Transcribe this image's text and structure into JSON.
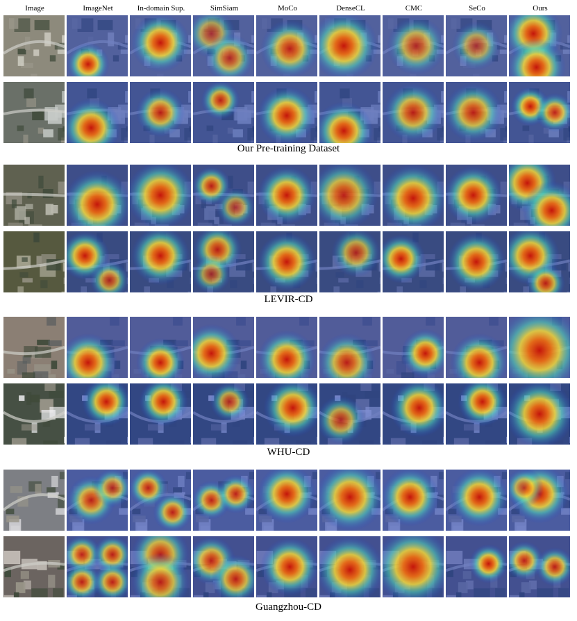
{
  "columns": [
    "Image",
    "ImageNet",
    "In-domain Sup.",
    "SimSiam",
    "MoCo",
    "DenseCL",
    "CMC",
    "SeCo",
    "Ours"
  ],
  "sections": [
    {
      "caption": "Our Pre-training Dataset",
      "rows": [
        {
          "scene": "suburban",
          "base": "#8d8a7c",
          "accent": "#d8d6cc",
          "heat": [
            [
              [
                0.35,
                0.8,
                0.22,
                1
              ]
            ],
            [
              [
                0.5,
                0.45,
                0.3,
                1
              ]
            ],
            [
              [
                0.3,
                0.3,
                0.25,
                0.7
              ],
              [
                0.6,
                0.7,
                0.25,
                0.8
              ]
            ],
            [
              [
                0.55,
                0.55,
                0.3,
                0.9
              ]
            ],
            [
              [
                0.4,
                0.5,
                0.35,
                1
              ]
            ],
            [
              [
                0.55,
                0.5,
                0.3,
                0.8
              ]
            ],
            [
              [
                0.5,
                0.5,
                0.25,
                0.7
              ]
            ],
            [
              [
                0.4,
                0.3,
                0.3,
                1
              ],
              [
                0.45,
                0.85,
                0.3,
                1
              ]
            ]
          ]
        },
        {
          "scene": "roads",
          "base": "#6a7068",
          "accent": "#c7cbc8",
          "heat": [
            [
              [
                0.4,
                0.75,
                0.3,
                1
              ]
            ],
            [
              [
                0.5,
                0.5,
                0.25,
                0.9
              ]
            ],
            [
              [
                0.45,
                0.3,
                0.2,
                0.9
              ]
            ],
            [
              [
                0.5,
                0.55,
                0.3,
                1
              ]
            ],
            [
              [
                0.4,
                0.8,
                0.3,
                1
              ]
            ],
            [
              [
                0.5,
                0.5,
                0.3,
                0.9
              ]
            ],
            [
              [
                0.45,
                0.5,
                0.3,
                0.9
              ]
            ],
            [
              [
                0.35,
                0.4,
                0.2,
                1
              ],
              [
                0.75,
                0.5,
                0.2,
                0.9
              ]
            ]
          ]
        }
      ]
    },
    {
      "caption": "LEVIR-CD",
      "rows": [
        {
          "scene": "cul-de-sac",
          "base": "#5f6150",
          "accent": "#b9b8ad",
          "heat": [
            [
              [
                0.5,
                0.65,
                0.35,
                1
              ]
            ],
            [
              [
                0.5,
                0.5,
                0.35,
                1
              ]
            ],
            [
              [
                0.3,
                0.35,
                0.2,
                0.9
              ],
              [
                0.7,
                0.7,
                0.2,
                0.7
              ]
            ],
            [
              [
                0.5,
                0.5,
                0.3,
                1
              ]
            ],
            [
              [
                0.4,
                0.5,
                0.35,
                0.9
              ]
            ],
            [
              [
                0.5,
                0.55,
                0.35,
                1
              ]
            ],
            [
              [
                0.45,
                0.5,
                0.3,
                1
              ]
            ],
            [
              [
                0.3,
                0.3,
                0.3,
                1
              ],
              [
                0.7,
                0.75,
                0.3,
                1
              ]
            ]
          ]
        },
        {
          "scene": "hillside",
          "base": "#56593f",
          "accent": "#a6a592",
          "heat": [
            [
              [
                0.3,
                0.4,
                0.25,
                1
              ],
              [
                0.7,
                0.8,
                0.2,
                0.8
              ]
            ],
            [
              [
                0.5,
                0.4,
                0.3,
                1
              ]
            ],
            [
              [
                0.4,
                0.3,
                0.25,
                0.9
              ],
              [
                0.3,
                0.7,
                0.2,
                0.7
              ]
            ],
            [
              [
                0.5,
                0.5,
                0.3,
                1
              ]
            ],
            [
              [
                0.6,
                0.35,
                0.25,
                0.8
              ]
            ],
            [
              [
                0.3,
                0.45,
                0.25,
                1
              ]
            ],
            [
              [
                0.5,
                0.5,
                0.3,
                1
              ]
            ],
            [
              [
                0.35,
                0.4,
                0.3,
                1
              ],
              [
                0.6,
                0.85,
                0.2,
                0.9
              ]
            ]
          ]
        }
      ]
    },
    {
      "caption": "WHU-CD",
      "rows": [
        {
          "scene": "roof",
          "base": "#8b7f74",
          "accent": "#585d5e",
          "heat": [
            [
              [
                0.35,
                0.75,
                0.3,
                1
              ]
            ],
            [
              [
                0.5,
                0.75,
                0.25,
                1
              ]
            ],
            [
              [
                0.3,
                0.6,
                0.3,
                1
              ]
            ],
            [
              [
                0.5,
                0.7,
                0.3,
                1
              ]
            ],
            [
              [
                0.45,
                0.75,
                0.3,
                0.9
              ]
            ],
            [
              [
                0.7,
                0.6,
                0.25,
                1
              ]
            ],
            [
              [
                0.55,
                0.75,
                0.3,
                1
              ]
            ],
            [
              [
                0.5,
                0.55,
                0.45,
                1
              ]
            ]
          ]
        },
        {
          "scene": "white-roofs",
          "base": "#465044",
          "accent": "#f1f1f3",
          "heat": [
            [
              [
                0.65,
                0.3,
                0.25,
                1
              ]
            ],
            [
              [
                0.55,
                0.3,
                0.25,
                1
              ]
            ],
            [
              [
                0.6,
                0.3,
                0.2,
                0.8
              ]
            ],
            [
              [
                0.6,
                0.4,
                0.3,
                1
              ]
            ],
            [
              [
                0.35,
                0.6,
                0.25,
                0.8
              ]
            ],
            [
              [
                0.6,
                0.4,
                0.3,
                1
              ]
            ],
            [
              [
                0.6,
                0.3,
                0.25,
                1
              ]
            ],
            [
              [
                0.5,
                0.5,
                0.35,
                1
              ]
            ]
          ]
        }
      ]
    },
    {
      "caption": "Guangzhou-CD",
      "rows": [
        {
          "scene": "urban",
          "base": "#7d7f84",
          "accent": "#d5d5d8",
          "heat": [
            [
              [
                0.4,
                0.5,
                0.25,
                0.9
              ],
              [
                0.75,
                0.3,
                0.2,
                0.8
              ]
            ],
            [
              [
                0.3,
                0.3,
                0.2,
                0.9
              ],
              [
                0.7,
                0.7,
                0.2,
                0.9
              ]
            ],
            [
              [
                0.3,
                0.5,
                0.2,
                0.9
              ],
              [
                0.7,
                0.4,
                0.2,
                0.9
              ]
            ],
            [
              [
                0.5,
                0.4,
                0.3,
                1
              ]
            ],
            [
              [
                0.5,
                0.45,
                0.35,
                1
              ]
            ],
            [
              [
                0.45,
                0.45,
                0.3,
                1
              ]
            ],
            [
              [
                0.55,
                0.45,
                0.3,
                1
              ]
            ],
            [
              [
                0.5,
                0.4,
                0.3,
                1
              ],
              [
                0.25,
                0.3,
                0.2,
                0.8
              ]
            ]
          ]
        },
        {
          "scene": "dense-blocks",
          "base": "#6b6460",
          "accent": "#c9c3bc",
          "heat": [
            [
              [
                0.25,
                0.3,
                0.2,
                0.9
              ],
              [
                0.75,
                0.3,
                0.2,
                0.9
              ],
              [
                0.25,
                0.75,
                0.2,
                0.9
              ],
              [
                0.75,
                0.75,
                0.2,
                0.9
              ]
            ],
            [
              [
                0.5,
                0.3,
                0.3,
                0.9
              ],
              [
                0.5,
                0.75,
                0.3,
                0.9
              ]
            ],
            [
              [
                0.3,
                0.4,
                0.25,
                0.9
              ],
              [
                0.7,
                0.7,
                0.25,
                0.9
              ]
            ],
            [
              [
                0.55,
                0.5,
                0.3,
                1
              ]
            ],
            [
              [
                0.5,
                0.55,
                0.35,
                1
              ]
            ],
            [
              [
                0.5,
                0.5,
                0.4,
                1
              ]
            ],
            [
              [
                0.7,
                0.45,
                0.2,
                1
              ]
            ],
            [
              [
                0.25,
                0.4,
                0.2,
                0.9
              ],
              [
                0.75,
                0.5,
                0.2,
                0.9
              ]
            ]
          ]
        }
      ]
    }
  ]
}
